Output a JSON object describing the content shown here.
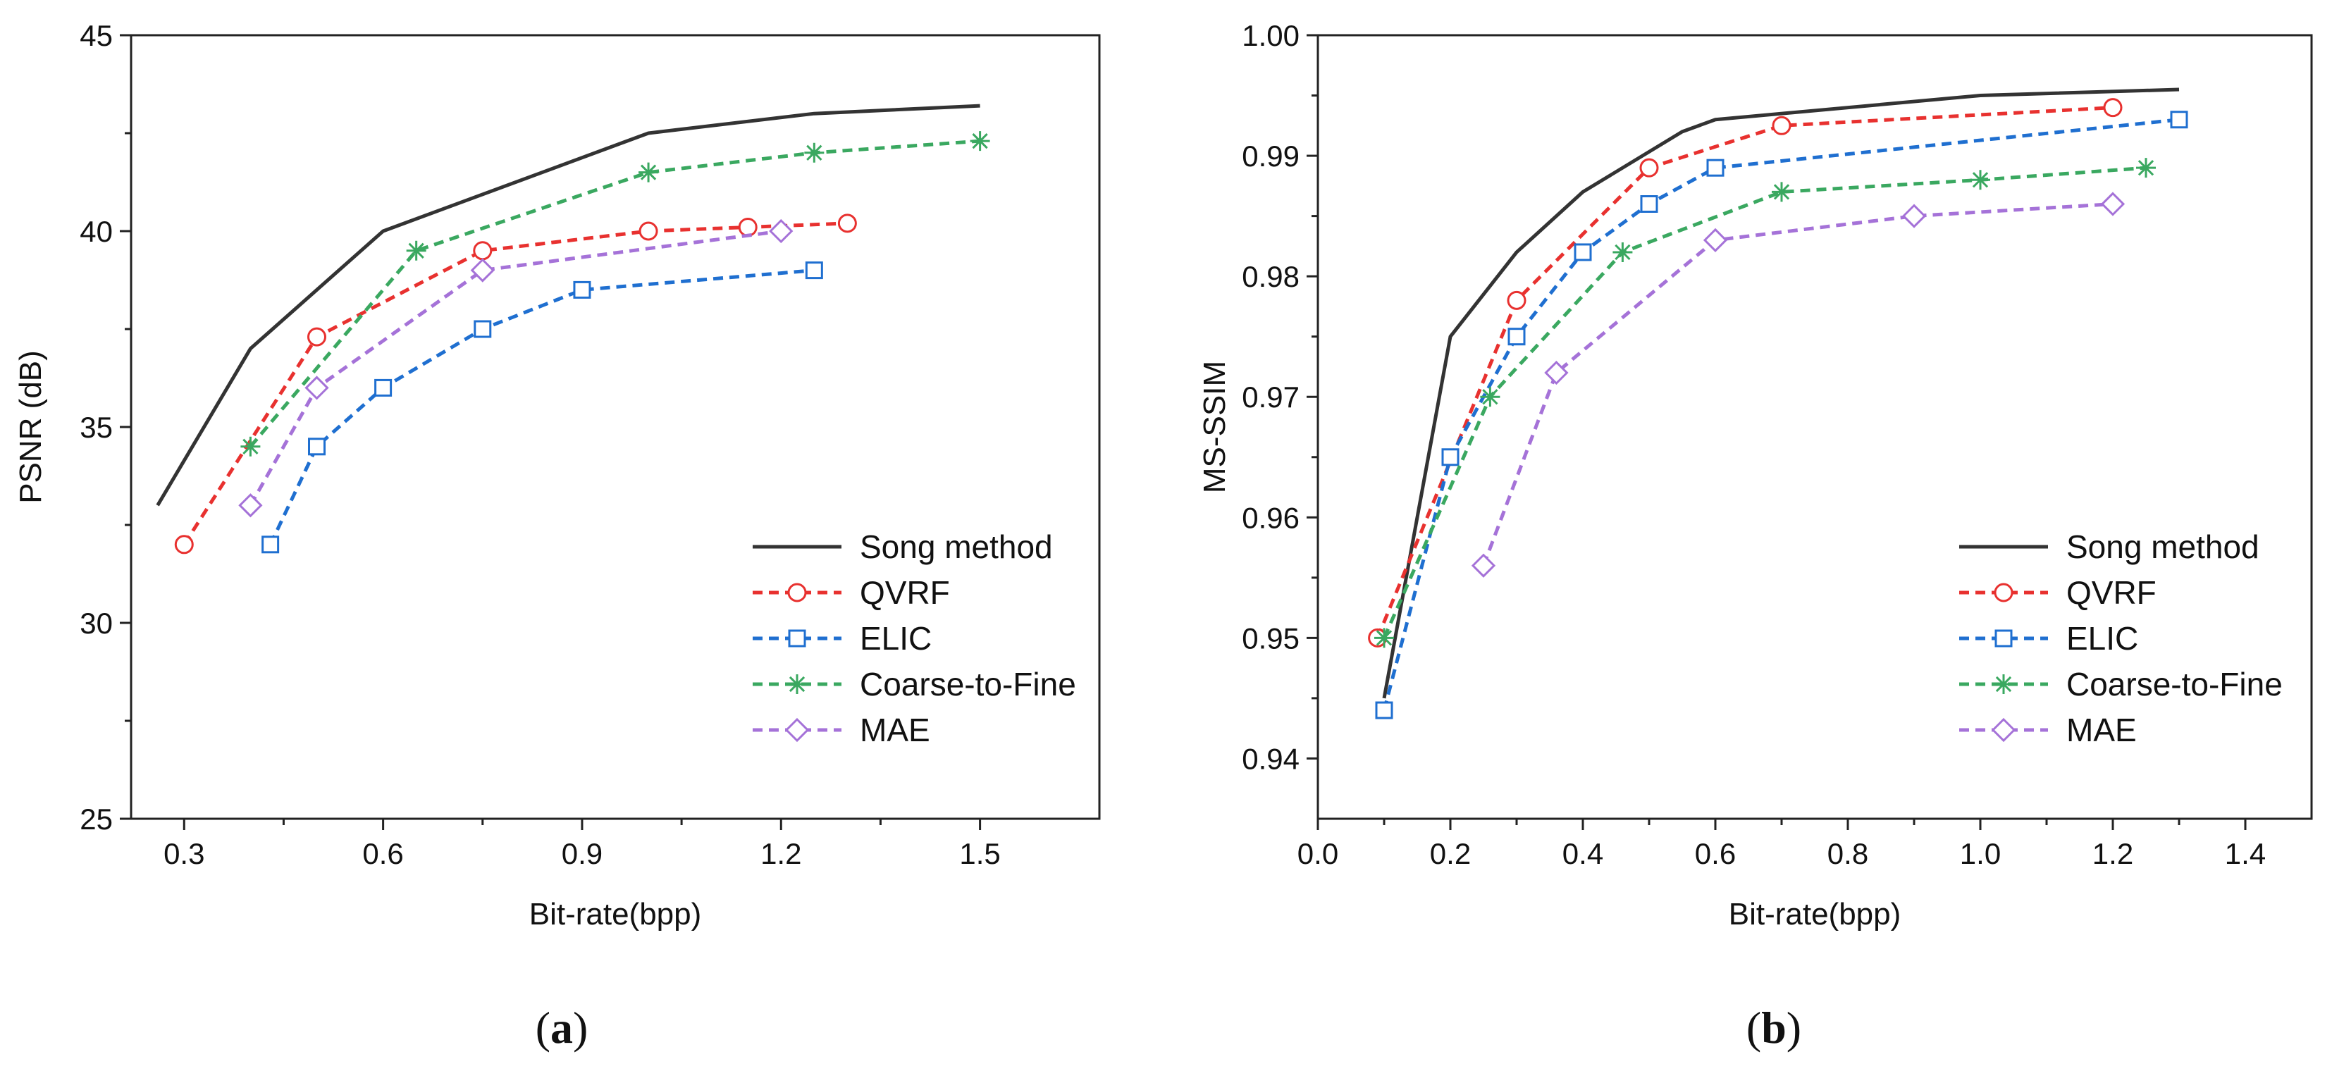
{
  "chart_data": [
    {
      "type": "line",
      "panel_label": "a",
      "title": "",
      "xlabel": "Bit-rate(bpp)",
      "ylabel": "PSNR (dB)",
      "xlim": [
        0.22,
        1.68
      ],
      "ylim": [
        25,
        45
      ],
      "xticks": [
        0.3,
        0.6,
        0.9,
        1.2,
        1.5
      ],
      "xtick_labels": [
        "0.3",
        "0.6",
        "0.9",
        "1.2",
        "1.5"
      ],
      "yticks": [
        25,
        30,
        35,
        40,
        45
      ],
      "ytick_labels": [
        "25",
        "30",
        "35",
        "40",
        "45"
      ],
      "grid": false,
      "legend_position": "bottom-right",
      "series": [
        {
          "name": "Song method",
          "color": "#333333",
          "style": "solid",
          "marker": "none",
          "x": [
            0.26,
            0.4,
            0.6,
            1.0,
            1.25,
            1.5
          ],
          "y": [
            33,
            37,
            40,
            42.5,
            43,
            43.2
          ]
        },
        {
          "name": "QVRF",
          "color": "#e8312f",
          "style": "dashed",
          "marker": "circle",
          "x": [
            0.3,
            0.5,
            0.75,
            1.0,
            1.15,
            1.3
          ],
          "y": [
            32,
            37.3,
            39.5,
            40,
            40.1,
            40.2
          ]
        },
        {
          "name": "ELIC",
          "color": "#1f6fd0",
          "style": "dashed",
          "marker": "square",
          "x": [
            0.43,
            0.5,
            0.6,
            0.75,
            0.9,
            1.25
          ],
          "y": [
            32,
            34.5,
            36,
            37.5,
            38.5,
            39
          ]
        },
        {
          "name": "Coarse-to-Fine",
          "color": "#3aa860",
          "style": "dashed",
          "marker": "asterisk",
          "x": [
            0.4,
            0.65,
            1.0,
            1.25,
            1.5
          ],
          "y": [
            34.5,
            39.5,
            41.5,
            42,
            42.3
          ]
        },
        {
          "name": "MAE",
          "color": "#a572d8",
          "style": "dashed",
          "marker": "diamond",
          "x": [
            0.4,
            0.5,
            0.75,
            1.2
          ],
          "y": [
            33,
            36,
            39,
            40
          ]
        }
      ]
    },
    {
      "type": "line",
      "panel_label": "b",
      "title": "",
      "xlabel": "Bit-rate(bpp)",
      "ylabel": "MS-SSIM",
      "xlim": [
        0.0,
        1.5
      ],
      "ylim": [
        0.935,
        1.0
      ],
      "xticks": [
        0.0,
        0.2,
        0.4,
        0.6,
        0.8,
        1.0,
        1.2,
        1.4
      ],
      "xtick_labels": [
        "0.0",
        "0.2",
        "0.4",
        "0.6",
        "0.8",
        "1.0",
        "1.2",
        "1.4"
      ],
      "yticks": [
        0.94,
        0.95,
        0.96,
        0.97,
        0.98,
        0.99,
        1.0
      ],
      "ytick_labels": [
        "0.94",
        "0.95",
        "0.96",
        "0.97",
        "0.98",
        "0.99",
        "1.00"
      ],
      "grid": false,
      "legend_position": "bottom-right",
      "series": [
        {
          "name": "Song method",
          "color": "#333333",
          "style": "solid",
          "marker": "none",
          "x": [
            0.1,
            0.2,
            0.3,
            0.4,
            0.55,
            0.6,
            1.0,
            1.3
          ],
          "y": [
            0.945,
            0.975,
            0.982,
            0.987,
            0.992,
            0.993,
            0.995,
            0.9955
          ]
        },
        {
          "name": "QVRF",
          "color": "#e8312f",
          "style": "dashed",
          "marker": "circle",
          "x": [
            0.09,
            0.3,
            0.5,
            0.7,
            1.2
          ],
          "y": [
            0.95,
            0.978,
            0.989,
            0.9925,
            0.994
          ]
        },
        {
          "name": "ELIC",
          "color": "#1f6fd0",
          "style": "dashed",
          "marker": "square",
          "x": [
            0.1,
            0.2,
            0.3,
            0.4,
            0.5,
            0.6,
            1.3
          ],
          "y": [
            0.944,
            0.965,
            0.975,
            0.982,
            0.986,
            0.989,
            0.993
          ]
        },
        {
          "name": "Coarse-to-Fine",
          "color": "#3aa860",
          "style": "dashed",
          "marker": "asterisk",
          "x": [
            0.1,
            0.26,
            0.46,
            0.7,
            1.0,
            1.25
          ],
          "y": [
            0.95,
            0.97,
            0.982,
            0.987,
            0.988,
            0.989
          ]
        },
        {
          "name": "MAE",
          "color": "#a572d8",
          "style": "dashed",
          "marker": "diamond",
          "x": [
            0.25,
            0.36,
            0.6,
            0.9,
            1.2
          ],
          "y": [
            0.956,
            0.972,
            0.983,
            0.985,
            0.986
          ]
        }
      ]
    }
  ]
}
